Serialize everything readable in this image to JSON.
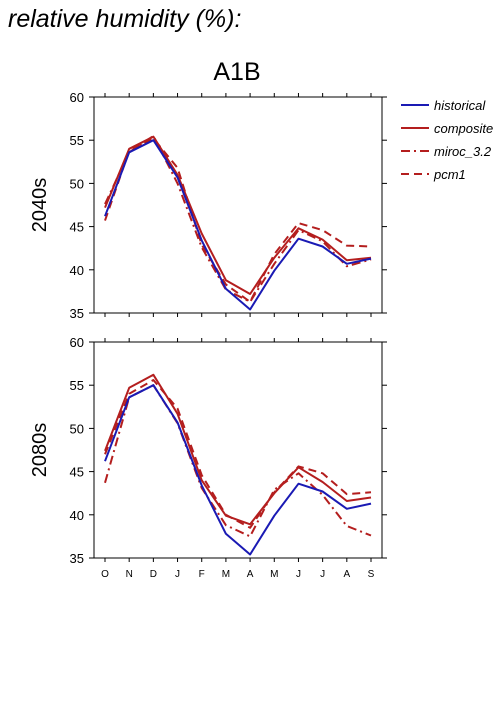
{
  "heading": "relative humidity (%):",
  "scenario": "A1B",
  "colors": {
    "historical": "#1a1ab4",
    "model": "#b41e1e"
  },
  "legend": [
    {
      "name": "historical",
      "dash": "solid",
      "color": "#1a1ab4"
    },
    {
      "name": "composite",
      "dash": "solid",
      "color": "#b41e1e"
    },
    {
      "name": "miroc_3.2",
      "dash": "dashdot",
      "color": "#b41e1e"
    },
    {
      "name": "pcm1",
      "dash": "dash",
      "color": "#b41e1e"
    }
  ],
  "chart_data": [
    {
      "type": "line",
      "ylabel": "2040s",
      "categories": [
        "O",
        "N",
        "D",
        "J",
        "F",
        "M",
        "A",
        "M",
        "J",
        "J",
        "A",
        "S"
      ],
      "ylim": [
        35,
        60
      ],
      "yticks": [
        35,
        40,
        45,
        50,
        55,
        60
      ],
      "series": [
        {
          "name": "historical",
          "values": [
            46.2,
            53.6,
            55.0,
            50.7,
            43.4,
            37.8,
            35.4,
            39.9,
            43.6,
            42.7,
            40.7,
            41.3
          ]
        },
        {
          "name": "composite",
          "values": [
            47.2,
            54.0,
            55.4,
            51.0,
            44.2,
            38.8,
            37.2,
            41.4,
            44.8,
            43.5,
            41.1,
            41.4
          ]
        },
        {
          "name": "miroc_3.2",
          "values": [
            47.6,
            53.6,
            55.5,
            50.0,
            42.6,
            37.7,
            36.3,
            40.7,
            44.6,
            43.3,
            40.4,
            41.2
          ]
        },
        {
          "name": "pcm1",
          "values": [
            45.7,
            53.8,
            55.2,
            51.8,
            42.9,
            38.3,
            36.3,
            41.8,
            45.4,
            44.6,
            42.8,
            42.7
          ]
        }
      ]
    },
    {
      "type": "line",
      "ylabel": "2080s",
      "categories": [
        "O",
        "N",
        "D",
        "J",
        "F",
        "M",
        "A",
        "M",
        "J",
        "J",
        "A",
        "S"
      ],
      "ylim": [
        35,
        60
      ],
      "yticks": [
        35,
        40,
        45,
        50,
        55,
        60
      ],
      "series": [
        {
          "name": "historical",
          "values": [
            46.2,
            53.6,
            55.0,
            50.7,
            43.4,
            37.8,
            35.4,
            39.9,
            43.6,
            42.7,
            40.7,
            41.3
          ]
        },
        {
          "name": "composite",
          "values": [
            47.4,
            54.7,
            56.2,
            51.7,
            44.0,
            39.9,
            38.9,
            42.5,
            45.5,
            43.8,
            41.6,
            42.0
          ]
        },
        {
          "name": "miroc_3.2",
          "values": [
            43.7,
            53.6,
            55.0,
            50.6,
            43.1,
            38.8,
            37.5,
            42.9,
            44.8,
            42.3,
            38.7,
            37.6
          ]
        },
        {
          "name": "pcm1",
          "values": [
            47.0,
            54.0,
            55.6,
            52.3,
            44.6,
            40.0,
            38.5,
            42.6,
            45.6,
            44.8,
            42.4,
            42.6
          ]
        }
      ]
    }
  ]
}
